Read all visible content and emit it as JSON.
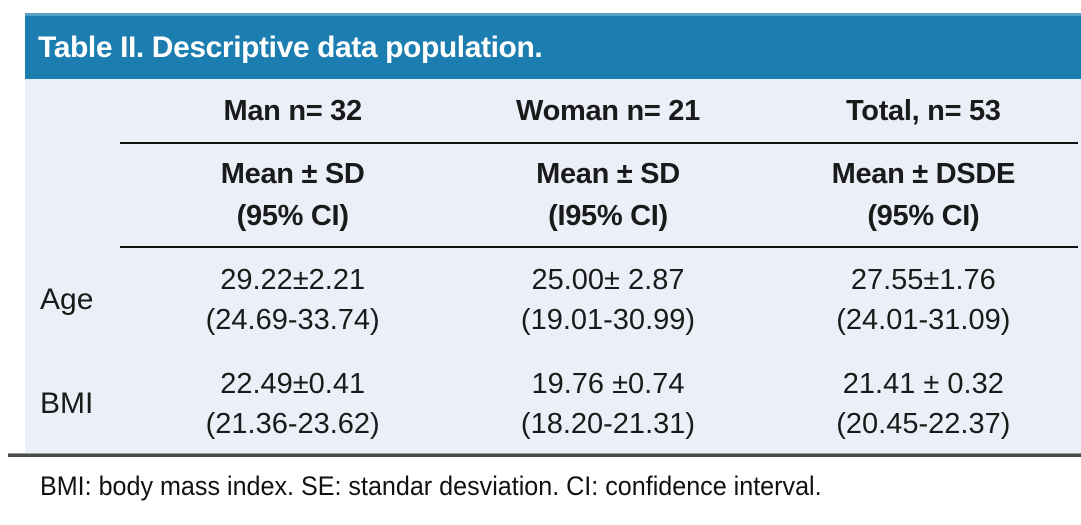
{
  "title": "Table II. Descriptive data population.",
  "colors": {
    "header_bg": "#1b7db0",
    "header_top_edge": "#58a1c4",
    "panel_bg": "#ebeff8",
    "title_text": "#ffffff",
    "body_text": "#1a1a1a"
  },
  "table": {
    "columns": [
      {
        "label": "Man n= 32",
        "subheader_line1": "Mean ± SD",
        "subheader_line2": "(95% CI)"
      },
      {
        "label": "Woman n= 21",
        "subheader_line1": "Mean ± SD",
        "subheader_line2": "(I95% CI)"
      },
      {
        "label": "Total, n= 53",
        "subheader_line1": "Mean ± DSDE",
        "subheader_line2": "(95% CI)"
      }
    ],
    "rows": [
      {
        "label": "Age",
        "cells": [
          {
            "value": "29.22±2.21",
            "ci": "(24.69-33.74)"
          },
          {
            "value": "25.00± 2.87",
            "ci": "(19.01-30.99)"
          },
          {
            "value": "27.55±1.76",
            "ci": "(24.01-31.09)"
          }
        ]
      },
      {
        "label": "BMI",
        "cells": [
          {
            "value": "22.49±0.41",
            "ci": "(21.36-23.62)"
          },
          {
            "value": "19.76 ±0.74",
            "ci": "(18.20-21.31)"
          },
          {
            "value": "21.41 ± 0.32",
            "ci": "(20.45-22.37)"
          }
        ]
      }
    ]
  },
  "footnote": "BMI: body mass index. SE: standar desviation. CI: confidence interval."
}
